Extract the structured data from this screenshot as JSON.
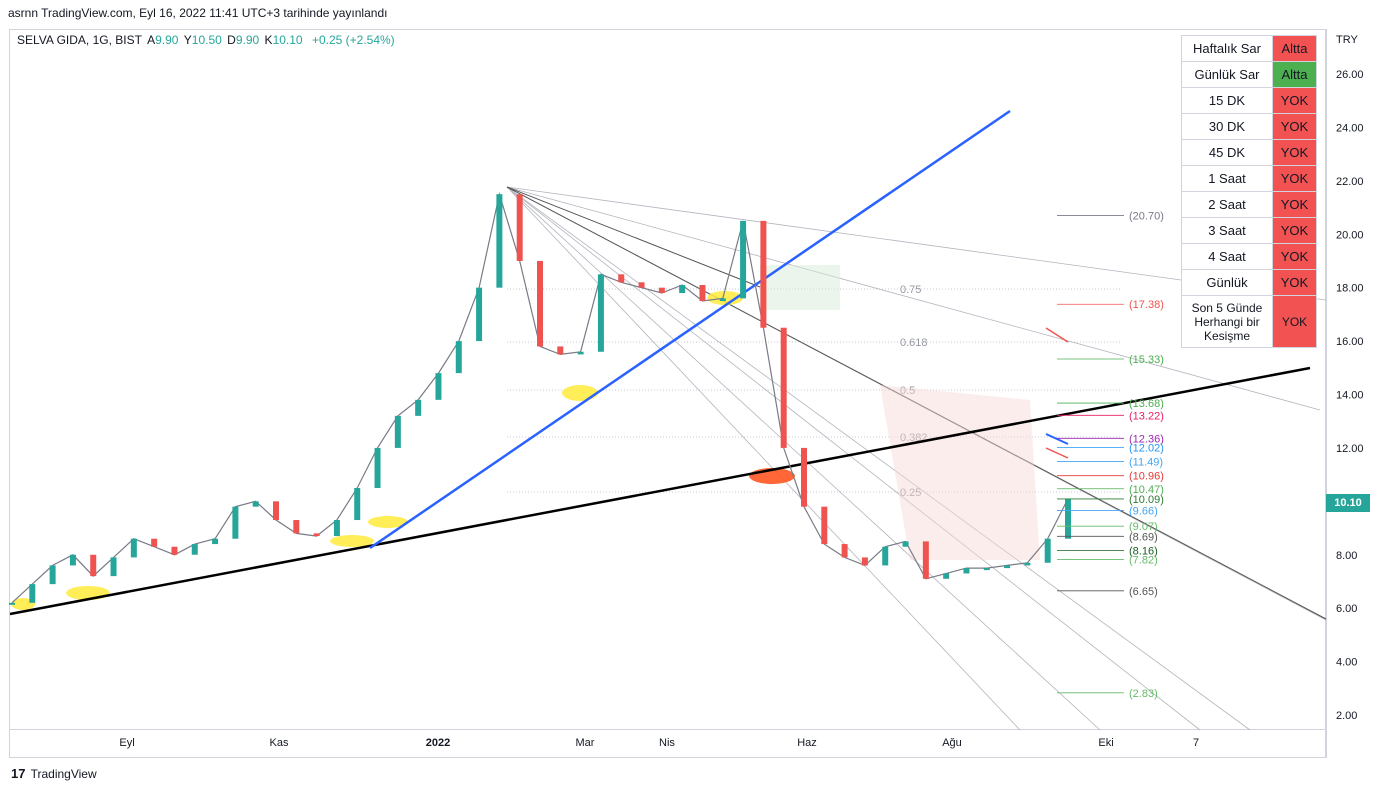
{
  "header": {
    "text": "asrnn TradingView.com, Eyl 16, 2022 11:41 UTC+3 tarihinde yayınlandı"
  },
  "legend": {
    "symbol": "SELVA GIDA, 1G, BIST",
    "open_label": "A",
    "open": "9.90",
    "high_label": "Y",
    "high": "10.50",
    "low_label": "D",
    "low": "9.90",
    "close_label": "K",
    "close": "10.10",
    "change": "+0.25 (+2.54%)"
  },
  "currency": "TRY",
  "last_price": "10.10",
  "brand": {
    "logo": "17",
    "name": "TradingView"
  },
  "colors": {
    "up": "#26a69a",
    "down": "#ef5350",
    "accent_blue": "#2962ff",
    "red_cell": "#f25252",
    "green_cell": "#4caf50"
  },
  "status_table": [
    {
      "label": "Haftalık Sar",
      "status": "Altta",
      "color": "red"
    },
    {
      "label": "Günlük Sar",
      "status": "Altta",
      "color": "green"
    },
    {
      "label": "15 DK",
      "status": "YOK",
      "color": "red"
    },
    {
      "label": "30 DK",
      "status": "YOK",
      "color": "red"
    },
    {
      "label": "45 DK",
      "status": "YOK",
      "color": "red"
    },
    {
      "label": "1 Saat",
      "status": "YOK",
      "color": "red"
    },
    {
      "label": "2 Saat",
      "status": "YOK",
      "color": "red"
    },
    {
      "label": "3 Saat",
      "status": "YOK",
      "color": "red"
    },
    {
      "label": "4 Saat",
      "status": "YOK",
      "color": "red"
    },
    {
      "label": "Günlük",
      "status": "YOK",
      "color": "red"
    },
    {
      "label": "Son 5 Günde Herhangi bir Kesişme",
      "status": "YOK",
      "color": "red"
    }
  ],
  "chart_data": {
    "type": "line",
    "title": "",
    "ylim": [
      2,
      26
    ],
    "y_ticks": [
      "26.00",
      "24.00",
      "22.00",
      "20.00",
      "18.00",
      "16.00",
      "14.00",
      "12.00",
      "10.00",
      "8.00",
      "6.00",
      "4.00",
      "2.00"
    ],
    "x_ticks": [
      "Eyl",
      "Kas",
      "2022",
      "Mar",
      "Nis",
      "Haz",
      "Ağu",
      "Eki",
      "7"
    ],
    "series": [
      {
        "values": [
          6.2,
          6.9,
          7.6,
          8.0,
          7.2,
          7.9,
          8.6,
          8.3,
          8.0,
          8.4,
          8.6,
          9.8,
          10.0,
          9.3,
          8.8,
          8.7,
          9.3,
          10.5,
          12.0,
          13.2,
          13.8,
          14.8,
          16.0,
          18.0,
          21.5,
          19.0,
          15.8,
          15.5,
          15.6,
          18.5,
          18.2,
          18.0,
          17.8,
          18.1,
          17.5,
          17.6,
          20.5,
          16.5,
          12.0,
          9.8,
          8.4,
          7.9,
          7.6,
          8.3,
          8.5,
          7.1,
          7.3,
          7.5,
          7.5,
          7.6,
          7.7,
          8.6,
          10.1
        ]
      }
    ],
    "fibonacci_levels": [
      {
        "ratio": "0.75"
      },
      {
        "ratio": "0.618"
      },
      {
        "ratio": "0.5"
      },
      {
        "ratio": "0.382"
      },
      {
        "ratio": "0.25"
      }
    ],
    "price_labels": [
      {
        "text": "(20.70)",
        "value": 20.7,
        "color": "#787b86"
      },
      {
        "text": "(17.38)",
        "value": 17.38,
        "color": "#ef5350"
      },
      {
        "text": "(15.33)",
        "value": 15.33,
        "color": "#4caf50"
      },
      {
        "text": "(13.68)",
        "value": 13.68,
        "color": "#4caf50"
      },
      {
        "text": "(13.22)",
        "value": 13.22,
        "color": "#e91e63"
      },
      {
        "text": "(12.36)",
        "value": 12.36,
        "color": "#9c27b0"
      },
      {
        "text": "(12.02)",
        "value": 12.02,
        "color": "#2196f3"
      },
      {
        "text": "(11.49)",
        "value": 11.49,
        "color": "#42a5f5"
      },
      {
        "text": "(10.96)",
        "value": 10.96,
        "color": "#e53935"
      },
      {
        "text": "(10.47)",
        "value": 10.47,
        "color": "#4caf50"
      },
      {
        "text": "(10.09)",
        "value": 10.09,
        "color": "#2e7d32"
      },
      {
        "text": "(9.66)",
        "value": 9.66,
        "color": "#42a5f5"
      },
      {
        "text": "(9.07)",
        "value": 9.07,
        "color": "#66bb6a"
      },
      {
        "text": "(8.69)",
        "value": 8.69,
        "color": "#555555"
      },
      {
        "text": "(8.16)",
        "value": 8.16,
        "color": "#1b5e20"
      },
      {
        "text": "(7.82)",
        "value": 7.82,
        "color": "#66bb6a"
      },
      {
        "text": "(6.65)",
        "value": 6.65,
        "color": "#555555"
      },
      {
        "text": "(2.83)",
        "value": 2.83,
        "color": "#66bb6a"
      }
    ]
  }
}
